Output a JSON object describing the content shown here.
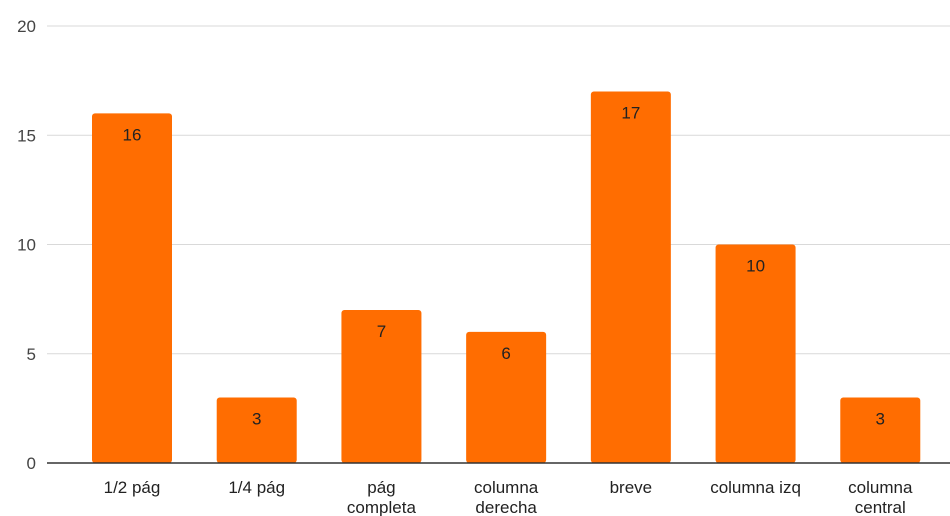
{
  "chart_data": {
    "type": "bar",
    "categories": [
      [
        "1/2 pág"
      ],
      [
        "1/4 pág"
      ],
      [
        "pág",
        "completa"
      ],
      [
        "columna",
        "derecha"
      ],
      [
        "breve"
      ],
      [
        "columna izq"
      ],
      [
        "columna",
        "central"
      ]
    ],
    "values": [
      16,
      3,
      7,
      6,
      17,
      10,
      3
    ],
    "y_ticks": [
      "0",
      "5",
      "10",
      "15",
      "20"
    ],
    "ylim": [
      0,
      20
    ],
    "grid": true,
    "legend": "none",
    "title": "",
    "xlabel": "",
    "ylabel": "",
    "colors": {
      "bar": "#FF6D01",
      "grid": "#d9d9d9",
      "axis": "#333333"
    }
  }
}
